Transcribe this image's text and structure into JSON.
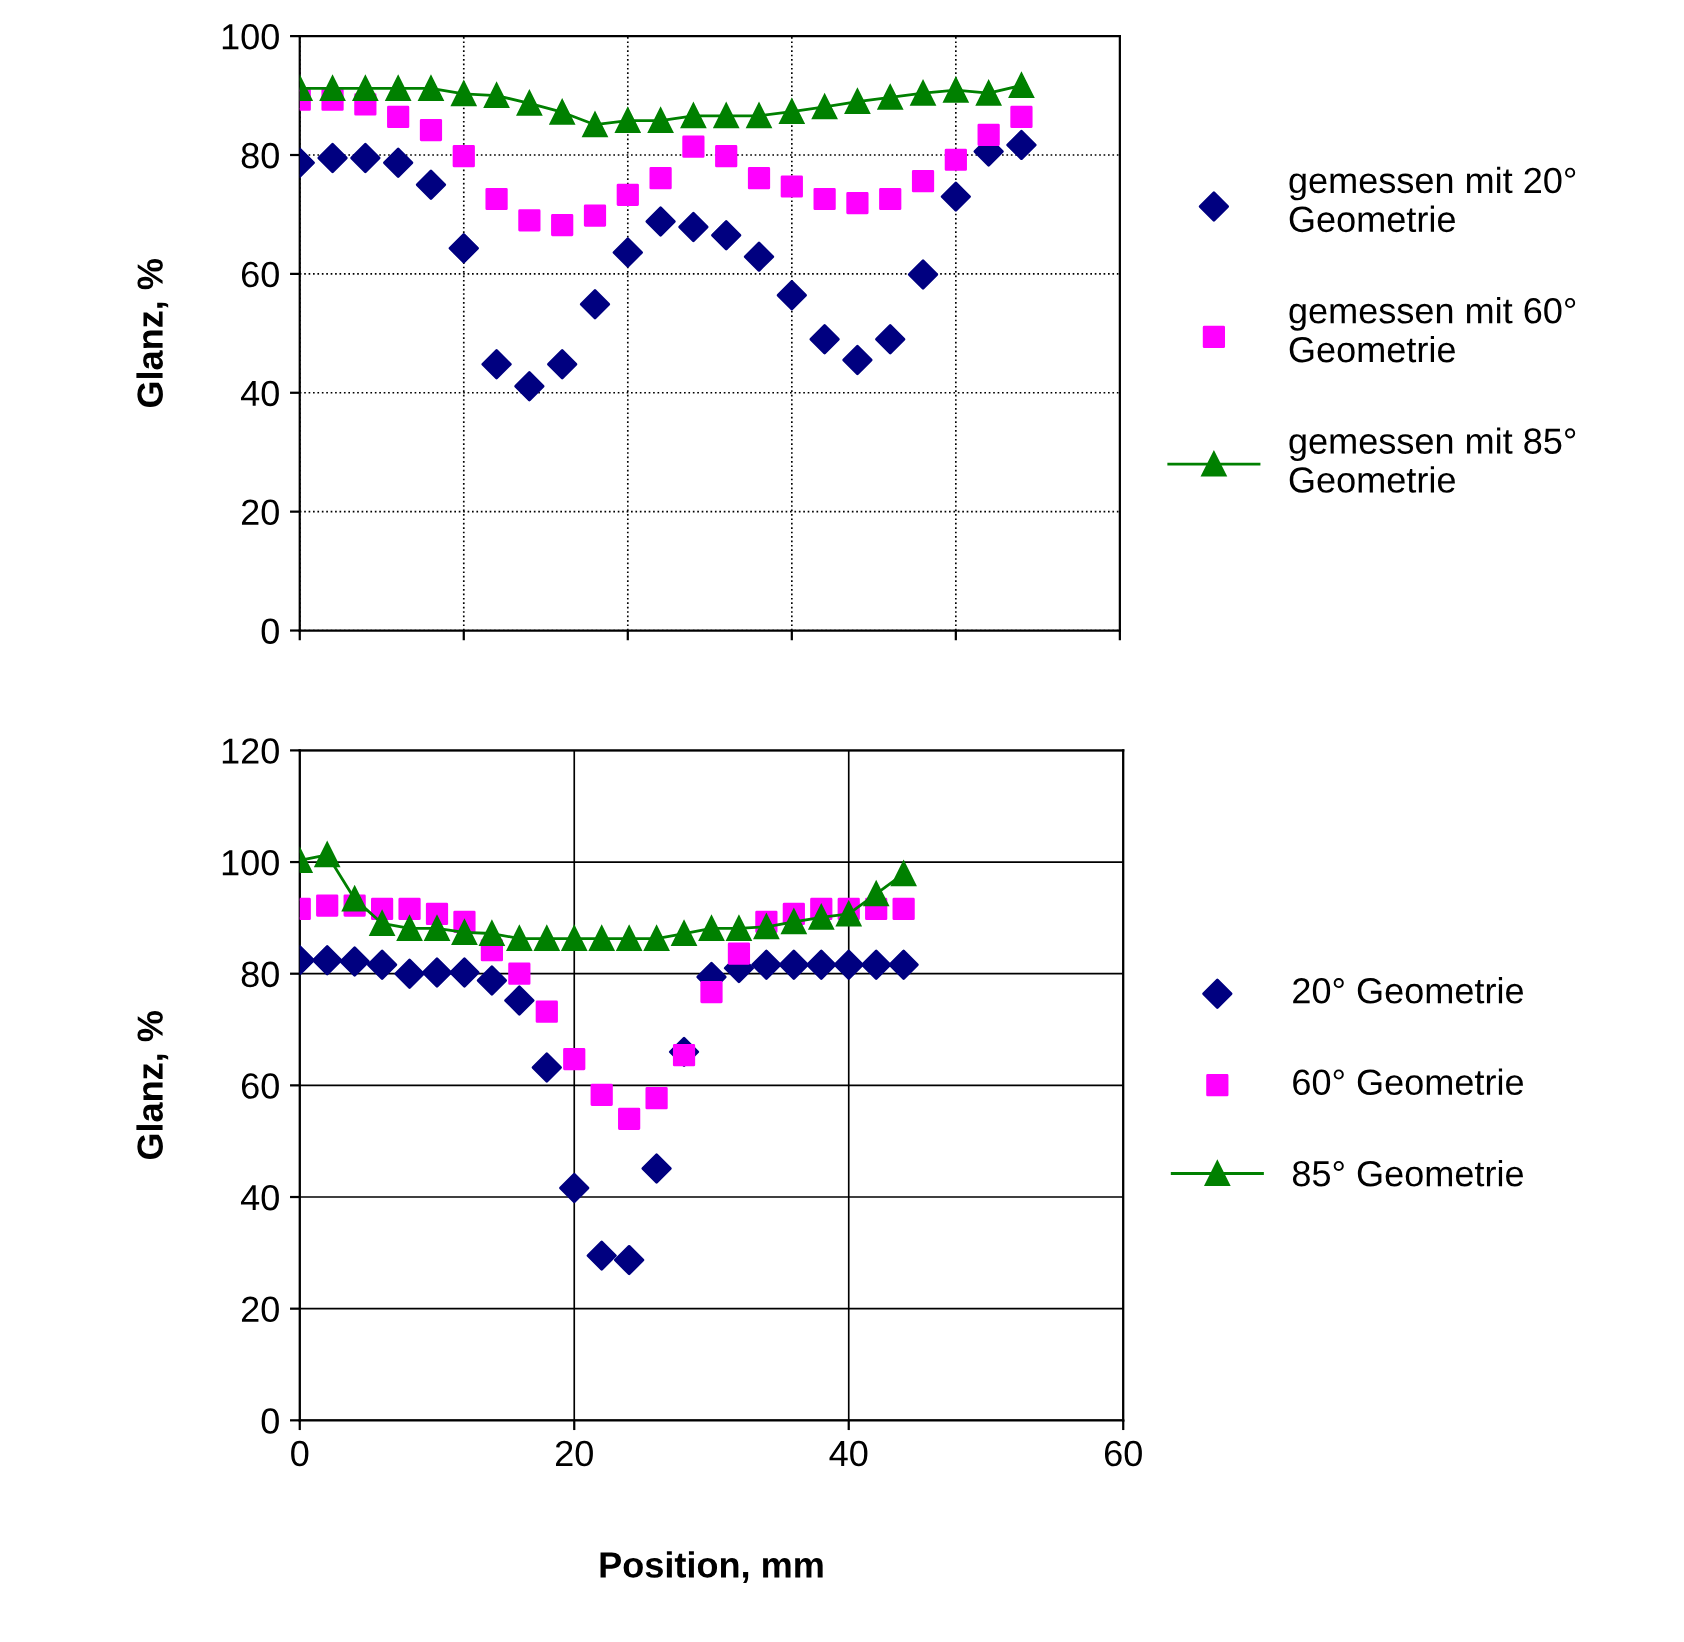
{
  "chart_data": [
    {
      "type": "scatter",
      "ylabel": "Glanz, %",
      "categories": [
        null,
        null,
        null,
        null,
        null,
        null,
        null,
        null,
        null,
        null,
        null,
        null,
        null,
        null,
        null,
        null,
        null,
        null,
        null,
        null,
        null,
        null,
        null,
        null,
        null,
        null
      ],
      "ylim": [
        0,
        100
      ],
      "yticks": [
        0,
        20,
        40,
        60,
        80,
        100
      ],
      "tick_labels": "y",
      "grid": true,
      "legend": "right",
      "series": [
        {
          "name": "gemessen mit 20°\nGeometrie",
          "type": "scatter",
          "marker": "diamond",
          "color": "#000080",
          "values": [
            78.7,
            79.5,
            79.5,
            78.7,
            75.0,
            64.3,
            44.8,
            41.1,
            44.8,
            54.9,
            63.6,
            68.8,
            67.9,
            66.5,
            62.9,
            56.4,
            49.0,
            45.5,
            49.0,
            59.9,
            73.0,
            80.6,
            81.7,
            null,
            null,
            null
          ]
        },
        {
          "name": "gemessen mit 60°\nGeometrie",
          "type": "scatter",
          "marker": "square",
          "color": "#ff00ff",
          "values": [
            89.3,
            89.3,
            88.5,
            86.4,
            84.2,
            79.8,
            72.6,
            69.0,
            68.2,
            69.8,
            73.3,
            76.1,
            81.4,
            79.8,
            76.1,
            74.7,
            72.6,
            71.9,
            72.6,
            75.6,
            79.2,
            83.4,
            86.4,
            null,
            null,
            null
          ]
        },
        {
          "name": "gemessen mit 85°\nGeometrie",
          "type": "line",
          "marker": "triangle",
          "line_style": "solid",
          "color": "#008000",
          "values": [
            91.2,
            91.2,
            91.2,
            91.2,
            91.2,
            90.3,
            90.0,
            88.7,
            87.2,
            85.1,
            85.8,
            85.8,
            86.6,
            86.6,
            86.6,
            87.3,
            88.1,
            89.0,
            89.7,
            90.4,
            90.9,
            90.4,
            91.7,
            null,
            null,
            null
          ]
        }
      ]
    },
    {
      "type": "scatter",
      "xlabel": "Position, mm",
      "ylabel": "Glanz, %",
      "x": [
        0,
        2,
        4,
        6,
        8,
        10,
        12,
        14,
        16,
        18,
        20,
        22,
        24,
        26,
        28,
        30,
        32,
        34,
        36,
        38,
        40,
        42,
        44
      ],
      "xlim": [
        0,
        60
      ],
      "xticks": [
        0,
        20,
        40,
        60
      ],
      "ylim": [
        0,
        120
      ],
      "yticks": [
        0,
        20,
        40,
        60,
        80,
        100,
        120
      ],
      "grid": true,
      "legend": "right",
      "series": [
        {
          "name": "20° Geometrie",
          "type": "scatter",
          "marker": "diamond",
          "color": "#000080",
          "values": [
            82.4,
            82.4,
            82.2,
            81.6,
            80.0,
            80.2,
            80.2,
            78.8,
            75.2,
            63.2,
            41.6,
            29.5,
            28.7,
            45.1,
            66.0,
            79.4,
            81.0,
            81.6,
            81.6,
            81.6,
            81.6,
            81.6,
            81.6
          ]
        },
        {
          "name": "60° Geometrie",
          "type": "scatter",
          "marker": "square",
          "color": "#ff00ff",
          "values": [
            91.6,
            92.2,
            92.2,
            91.6,
            91.6,
            90.7,
            89.3,
            84.2,
            80.0,
            73.2,
            64.7,
            58.3,
            54.0,
            57.7,
            65.4,
            76.7,
            83.6,
            89.3,
            90.7,
            91.6,
            91.6,
            91.6,
            91.6
          ]
        },
        {
          "name": "85° Geometrie",
          "type": "line",
          "marker": "triangle",
          "line_style": "solid",
          "color": "#008000",
          "values": [
            100.3,
            101.3,
            93.4,
            89.0,
            88.1,
            88.1,
            87.4,
            87.2,
            86.3,
            86.3,
            86.3,
            86.3,
            86.3,
            86.3,
            87.2,
            88.1,
            88.1,
            88.4,
            89.3,
            90.1,
            90.7,
            94.3,
            97.9
          ]
        }
      ]
    }
  ]
}
